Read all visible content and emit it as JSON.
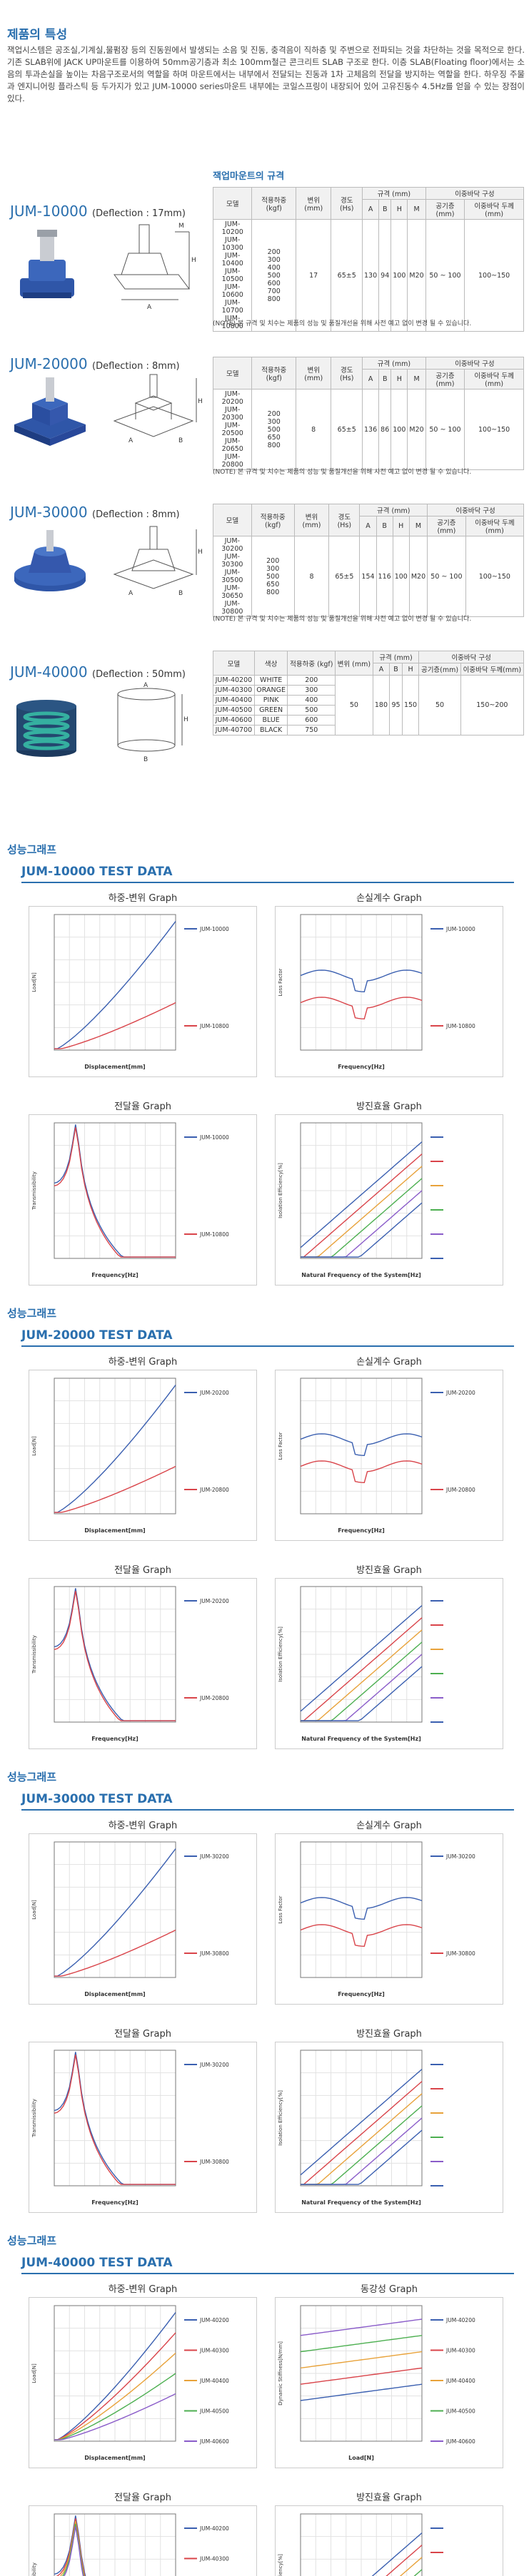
{
  "page": {
    "section_title": "제품의 특성",
    "intro": "잭업시스템은 공조실,기계실,물펌장 등의 진동원에서 발생되는 소음 및 진동, 충격음이 직하층 및 주변으로 전파되는 것을 차단하는 것을 목적으로 한다. 기존 SLAB위에 JACK UP마운트를 이용하여 50mm공기층과 최소 100mm철근 콘크리트 SLAB 구조로 한다. 이층 SLAB(Floating floor)에서는 소음의 투과손실을 높이는 차음구조로서의 역할을 하며 마운트에서는 내부에서 전달되는 진동과 1차 고체음의 전달을 방지하는 역할을 한다. 하우징 주물과 엔지니어링 플라스틱 등 두가지가 있고 JUM-10000 series마운트 내부에는 코일스프링이 내장되어 있어 고유진동수 4.5Hz를 얻을 수 있는 장점이 있다.",
    "spec_title": "잭업마운트의 규격"
  },
  "models": [
    {
      "name": "JUM-10000",
      "deflection": "(Deflection : 17mm)"
    },
    {
      "name": "JUM-20000",
      "deflection": "(Deflection : 8mm)"
    },
    {
      "name": "JUM-30000",
      "deflection": "(Deflection : 8mm)"
    },
    {
      "name": "JUM-40000",
      "deflection": "(Deflection : 50mm)"
    }
  ],
  "table_headers": {
    "model": "모델",
    "load": "적용하중 (kgf)",
    "defl": "변위 (mm)",
    "hardness": "경도 (Hs)",
    "spec": "규격 (mm)",
    "A": "A",
    "B": "B",
    "H": "H",
    "M": "M",
    "airgap_group": "이중바닥 구성",
    "airgap": "공기층(mm)",
    "slab": "이중바닥 두께(mm)",
    "color": "색상"
  },
  "tables": [
    {
      "models": [
        "JUM-10200",
        "JUM-10300",
        "JUM-10400",
        "JUM-10500",
        "JUM-10600",
        "JUM-10700",
        "JUM-10800"
      ],
      "loads": [
        "200",
        "300",
        "400",
        "500",
        "600",
        "700",
        "800"
      ],
      "defl": "17",
      "hardness": "65±5",
      "A": "130",
      "B": "94",
      "H": "100",
      "M": "M20",
      "airgap": "50 ~ 100",
      "slab": "100~150"
    },
    {
      "models": [
        "JUM-20200",
        "JUM-20300",
        "JUM-20500",
        "JUM-20650",
        "JUM-20800"
      ],
      "loads": [
        "200",
        "300",
        "500",
        "650",
        "800"
      ],
      "defl": "8",
      "hardness": "65±5",
      "A": "136",
      "B": "86",
      "H": "100",
      "M": "M20",
      "airgap": "50 ~ 100",
      "slab": "100~150"
    },
    {
      "models": [
        "JUM-30200",
        "JUM-30300",
        "JUM-30500",
        "JUM-30650",
        "JUM-30800"
      ],
      "loads": [
        "200",
        "300",
        "500",
        "650",
        "800"
      ],
      "defl": "8",
      "hardness": "65±5",
      "A": "154",
      "B": "116",
      "H": "100",
      "M": "M20",
      "airgap": "50 ~ 100",
      "slab": "100~150"
    },
    {
      "models": [
        "JUM-40200",
        "JUM-40300",
        "JUM-40400",
        "JUM-40500",
        "JUM-40600",
        "JUM-40700"
      ],
      "colors": [
        "WHITE",
        "ORANGE",
        "PINK",
        "GREEN",
        "BLUE",
        "BLACK"
      ],
      "loads": [
        "200",
        "300",
        "400",
        "500",
        "600",
        "750"
      ],
      "defl": "50",
      "A": "180",
      "B": "95",
      "H": "150",
      "airgap": "50",
      "slab": "150~200"
    }
  ],
  "note": "(NOTE) 본 규격 및 치수는 제품의 성능 및 품질개선을 위해 사전 예고 없이 변경 될 수 있습니다.",
  "perf_title": "성능그래프",
  "test_sections": [
    {
      "title": "JUM-10000 TEST DATA",
      "graphs": [
        "하중-변위 Graph",
        "손실계수 Graph",
        "전달율 Graph",
        "방진효율 Graph"
      ],
      "legend": [
        "JUM-10000",
        "JUM-10800"
      ]
    },
    {
      "title": "JUM-20000 TEST DATA",
      "graphs": [
        "하중-변위 Graph",
        "손실계수 Graph",
        "전달율 Graph",
        "방진효율 Graph"
      ],
      "legend": [
        "JUM-20200",
        "JUM-20800"
      ]
    },
    {
      "title": "JUM-30000 TEST DATA",
      "graphs": [
        "하중-변위 Graph",
        "손실계수 Graph",
        "전달율 Graph",
        "방진효율 Graph"
      ],
      "legend": [
        "JUM-30200",
        "JUM-30800"
      ]
    },
    {
      "title": "JUM-40000 TEST DATA",
      "graphs": [
        "하중-변위 Graph",
        "동강성 Graph",
        "전달율 Graph",
        "방진효율 Graph"
      ],
      "legend": [
        "JUM-40200",
        "JUM-40300",
        "JUM-40400",
        "JUM-40500",
        "JUM-40600"
      ]
    }
  ],
  "axis": {
    "disp": "Displacement[mm]",
    "load": "Load[N]",
    "freq": "Frequency[Hz]",
    "loss": "Loss Factor",
    "trans": "Transmissibility",
    "nat": "Natural Frequency of the System[Hz]",
    "iso": "Isolation Efficiency[%]",
    "dyn": "Dynamic Stiffness[N/mm]"
  },
  "colors": {
    "accent": "#2a6fae",
    "blue": "#3a5fb0",
    "red": "#d9444a"
  }
}
